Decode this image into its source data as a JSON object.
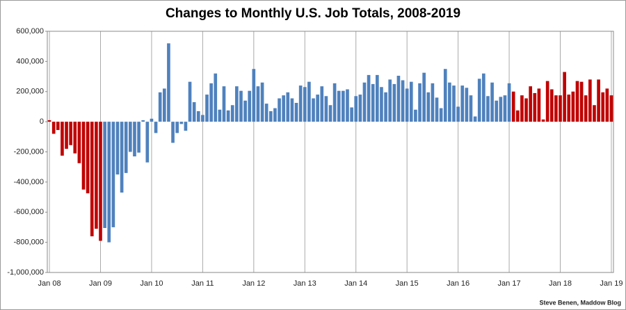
{
  "chart_data": {
    "type": "bar",
    "title": "Changes to Monthly U.S. Job Totals, 2008-2019",
    "source": "Steve Benen, Maddow Blog",
    "categories": [
      "Jan 08",
      null,
      null,
      null,
      null,
      null,
      null,
      null,
      null,
      null,
      null,
      null,
      "Jan 09",
      null,
      null,
      null,
      null,
      null,
      null,
      null,
      null,
      null,
      null,
      null,
      "Jan 10",
      null,
      null,
      null,
      null,
      null,
      null,
      null,
      null,
      null,
      null,
      null,
      "Jan 11",
      null,
      null,
      null,
      null,
      null,
      null,
      null,
      null,
      null,
      null,
      null,
      "Jan 12",
      null,
      null,
      null,
      null,
      null,
      null,
      null,
      null,
      null,
      null,
      null,
      "Jan 13",
      null,
      null,
      null,
      null,
      null,
      null,
      null,
      null,
      null,
      null,
      null,
      "Jan 14",
      null,
      null,
      null,
      null,
      null,
      null,
      null,
      null,
      null,
      null,
      null,
      "Jan 15",
      null,
      null,
      null,
      null,
      null,
      null,
      null,
      null,
      null,
      null,
      null,
      "Jan 16",
      null,
      null,
      null,
      null,
      null,
      null,
      null,
      null,
      null,
      null,
      null,
      "Jan 17",
      null,
      null,
      null,
      null,
      null,
      null,
      null,
      null,
      null,
      null,
      null,
      "Jan 18",
      null,
      null,
      null,
      null,
      null,
      null,
      null,
      null,
      null,
      null,
      null,
      "Jan 19"
    ],
    "values": [
      10000,
      -80000,
      -55000,
      -225000,
      -180000,
      -155000,
      -210000,
      -275000,
      -450000,
      -475000,
      -760000,
      -710000,
      -790000,
      -705000,
      -800000,
      -700000,
      -350000,
      -470000,
      -340000,
      -200000,
      -230000,
      -205000,
      10000,
      -270000,
      20000,
      -75000,
      195000,
      220000,
      520000,
      -140000,
      -75000,
      -15000,
      -60000,
      265000,
      130000,
      70000,
      45000,
      180000,
      255000,
      320000,
      80000,
      235000,
      75000,
      110000,
      235000,
      205000,
      140000,
      205000,
      350000,
      235000,
      260000,
      120000,
      70000,
      90000,
      155000,
      175000,
      195000,
      155000,
      125000,
      240000,
      230000,
      265000,
      155000,
      180000,
      235000,
      170000,
      110000,
      255000,
      205000,
      205000,
      215000,
      95000,
      170000,
      180000,
      260000,
      310000,
      250000,
      310000,
      230000,
      195000,
      280000,
      250000,
      305000,
      275000,
      220000,
      265000,
      80000,
      255000,
      325000,
      195000,
      255000,
      160000,
      90000,
      350000,
      260000,
      240000,
      100000,
      240000,
      225000,
      175000,
      35000,
      285000,
      320000,
      170000,
      260000,
      140000,
      165000,
      175000,
      255000,
      200000,
      75000,
      175000,
      155000,
      235000,
      190000,
      220000,
      15000,
      270000,
      215000,
      175000,
      175000,
      330000,
      180000,
      200000,
      270000,
      265000,
      175000,
      280000,
      110000,
      280000,
      195000,
      220000,
      175000
    ],
    "bar_colors": [
      "#c00000",
      "#c00000",
      "#c00000",
      "#c00000",
      "#c00000",
      "#c00000",
      "#c00000",
      "#c00000",
      "#c00000",
      "#c00000",
      "#c00000",
      "#c00000",
      "#c00000",
      "#4f81bd",
      "#4f81bd",
      "#4f81bd",
      "#4f81bd",
      "#4f81bd",
      "#4f81bd",
      "#4f81bd",
      "#4f81bd",
      "#4f81bd",
      "#4f81bd",
      "#4f81bd",
      "#4f81bd",
      "#4f81bd",
      "#4f81bd",
      "#4f81bd",
      "#4f81bd",
      "#4f81bd",
      "#4f81bd",
      "#4f81bd",
      "#4f81bd",
      "#4f81bd",
      "#4f81bd",
      "#4f81bd",
      "#4f81bd",
      "#4f81bd",
      "#4f81bd",
      "#4f81bd",
      "#4f81bd",
      "#4f81bd",
      "#4f81bd",
      "#4f81bd",
      "#4f81bd",
      "#4f81bd",
      "#4f81bd",
      "#4f81bd",
      "#4f81bd",
      "#4f81bd",
      "#4f81bd",
      "#4f81bd",
      "#4f81bd",
      "#4f81bd",
      "#4f81bd",
      "#4f81bd",
      "#4f81bd",
      "#4f81bd",
      "#4f81bd",
      "#4f81bd",
      "#4f81bd",
      "#4f81bd",
      "#4f81bd",
      "#4f81bd",
      "#4f81bd",
      "#4f81bd",
      "#4f81bd",
      "#4f81bd",
      "#4f81bd",
      "#4f81bd",
      "#4f81bd",
      "#4f81bd",
      "#4f81bd",
      "#4f81bd",
      "#4f81bd",
      "#4f81bd",
      "#4f81bd",
      "#4f81bd",
      "#4f81bd",
      "#4f81bd",
      "#4f81bd",
      "#4f81bd",
      "#4f81bd",
      "#4f81bd",
      "#4f81bd",
      "#4f81bd",
      "#4f81bd",
      "#4f81bd",
      "#4f81bd",
      "#4f81bd",
      "#4f81bd",
      "#4f81bd",
      "#4f81bd",
      "#4f81bd",
      "#4f81bd",
      "#4f81bd",
      "#4f81bd",
      "#4f81bd",
      "#4f81bd",
      "#4f81bd",
      "#4f81bd",
      "#4f81bd",
      "#4f81bd",
      "#4f81bd",
      "#4f81bd",
      "#4f81bd",
      "#4f81bd",
      "#4f81bd",
      "#4f81bd",
      "#c00000",
      "#c00000",
      "#c00000",
      "#c00000",
      "#c00000",
      "#c00000",
      "#c00000",
      "#c00000",
      "#c00000",
      "#c00000",
      "#c00000",
      "#c00000",
      "#c00000",
      "#c00000",
      "#c00000",
      "#c00000",
      "#c00000",
      "#c00000",
      "#c00000",
      "#c00000",
      "#c00000",
      "#c00000",
      "#c00000",
      "#c00000"
    ],
    "ylim": [
      -1000000,
      600000
    ],
    "yticks": [
      {
        "value": -1000000,
        "label": "-1,000,000"
      },
      {
        "value": -800000,
        "label": "-800,000"
      },
      {
        "value": -600000,
        "label": "-600,000"
      },
      {
        "value": -400000,
        "label": "-400,000"
      },
      {
        "value": -200000,
        "label": "-200,000"
      },
      0,
      {
        "value": 200000,
        "label": "200,000"
      },
      {
        "value": 400000,
        "label": "400,000"
      },
      {
        "value": 600000,
        "label": "600,000"
      }
    ],
    "grid": true
  }
}
